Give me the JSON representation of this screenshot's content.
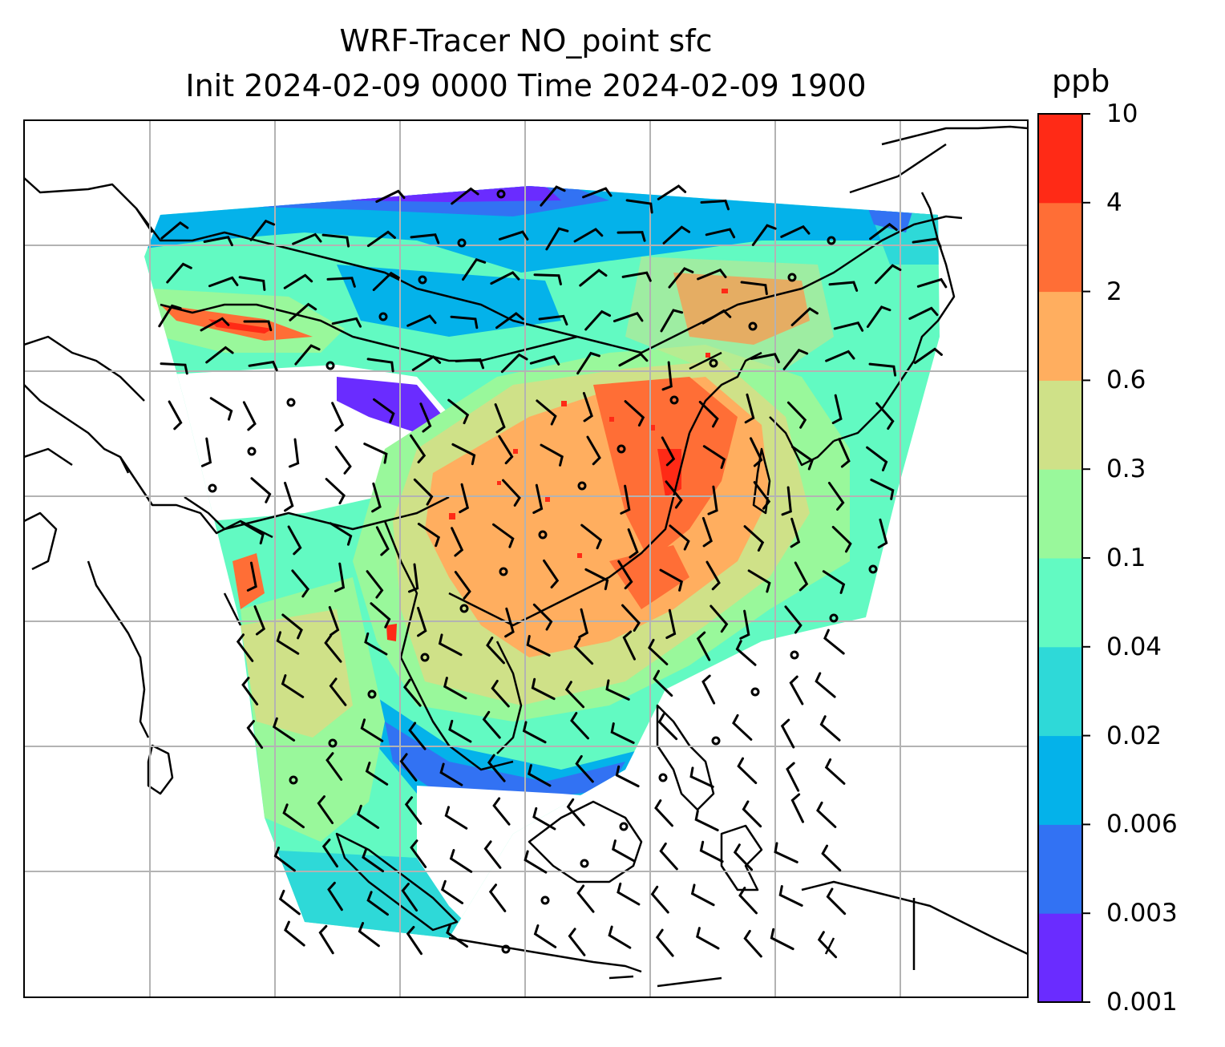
{
  "title": {
    "line1": "WRF-Tracer NO_point sfc",
    "line2": "Init 2024-02-09 0000 Time 2024-02-09 1900"
  },
  "colorbar": {
    "unit": "ppb",
    "ticks": [
      "0.001",
      "0.003",
      "0.006",
      "0.02",
      "0.04",
      "0.1",
      "0.3",
      "0.6",
      "2",
      "4",
      "10"
    ],
    "colors": [
      "#6a2cff",
      "#3272f3",
      "#04b2ea",
      "#2ed9d8",
      "#62fac2",
      "#99f89b",
      "#cfe188",
      "#ffae5f",
      "#ff6e36",
      "#ff2a16"
    ]
  },
  "map": {
    "gridlines": true,
    "field": "NO_point tracer surface concentration",
    "overlay": "wind barbs",
    "colors": {
      "land_outline": "#000000",
      "gridline": "#b3b3b3",
      "background": "#ffffff"
    }
  }
}
